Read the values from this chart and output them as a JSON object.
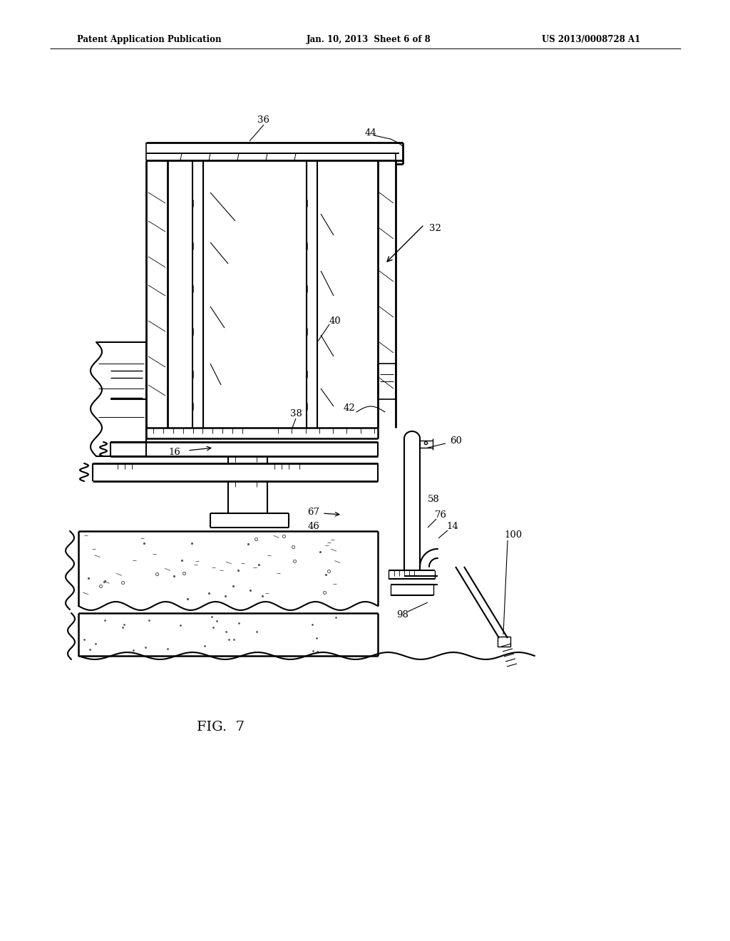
{
  "bg_color": "#ffffff",
  "line_color": "#000000",
  "header_left": "Patent Application Publication",
  "header_center": "Jan. 10, 2013  Sheet 6 of 8",
  "header_right": "US 2013/0008728 A1",
  "fig_label": "FIG.  7"
}
